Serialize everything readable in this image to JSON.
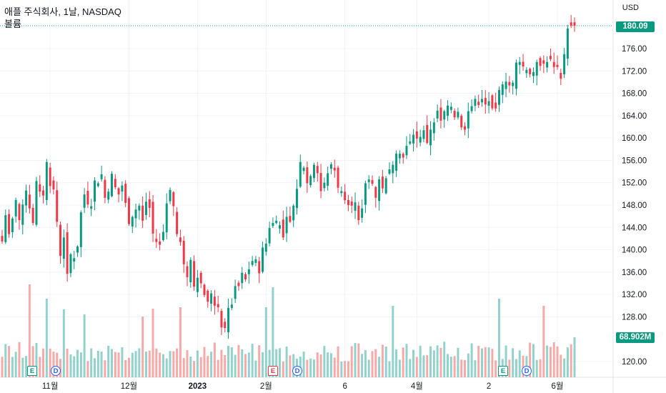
{
  "header": {
    "title": "애플 주식회사, 1날, NASDAQ",
    "subtitle": "볼륨",
    "currency": "USD"
  },
  "badges": {
    "last_price": "180.09",
    "last_volume": "68.902M"
  },
  "colors": {
    "up": "#089981",
    "down": "#f23645",
    "vol_up": "#92d2cc",
    "vol_down": "#f7a9a7",
    "grid": "#f0f3fa",
    "axis_text": "#131722"
  },
  "events": [
    {
      "type": "E",
      "color": "green"
    },
    {
      "type": "D",
      "color": "blue"
    },
    {
      "type": "E",
      "color": "red"
    },
    {
      "type": "D",
      "color": "blue"
    },
    {
      "type": "E",
      "color": "green"
    },
    {
      "type": "D",
      "color": "blue"
    }
  ],
  "chart_data": {
    "type": "candlestick",
    "title": "애플 주식회사, 1날, NASDAQ",
    "currency": "USD",
    "y_ticks": [
      "176.00",
      "172.00",
      "168.00",
      "164.00",
      "160.00",
      "156.00",
      "152.00",
      "148.00",
      "144.00",
      "140.00",
      "136.00",
      "132.00",
      "128.00",
      "120.00"
    ],
    "y_tick_values": [
      176,
      172,
      168,
      164,
      160,
      156,
      152,
      148,
      144,
      140,
      136,
      132,
      128,
      120
    ],
    "ylim": [
      117.5,
      183
    ],
    "x_ticks": [
      {
        "label": "11월",
        "index": 14,
        "bold": false
      },
      {
        "label": "12월",
        "index": 37,
        "bold": false
      },
      {
        "label": "2023",
        "index": 57,
        "bold": true
      },
      {
        "label": "2월",
        "index": 77,
        "bold": false
      },
      {
        "label": "6",
        "index": 100,
        "bold": false
      },
      {
        "label": "4월",
        "index": 121,
        "bold": false
      },
      {
        "label": "2",
        "index": 142,
        "bold": false
      },
      {
        "label": "6월",
        "index": 162,
        "bold": false
      }
    ],
    "closes": [
      141.5,
      146.2,
      142.8,
      145.6,
      148.9,
      145.3,
      148.1,
      150.6,
      147.4,
      144.8,
      152.3,
      150.4,
      149.7,
      155.7,
      151.4,
      150.8,
      145.0,
      138.9,
      142.2,
      135.7,
      139.2,
      138.5,
      140.6,
      146.7,
      149.9,
      148.1,
      147.8,
      152.4,
      151.9,
      153.5,
      149.3,
      150.4,
      153.6,
      151.2,
      149.9,
      151.5,
      148.4,
      144.6,
      145.9,
      147.2,
      147.9,
      145.2,
      148.6,
      147.5,
      142.9,
      141.4,
      140.9,
      143.2,
      148.3,
      150.7,
      147.8,
      142.8,
      141.4,
      137.4,
      135.1,
      138.2,
      133.4,
      135.0,
      134.0,
      131.9,
      130.7,
      132.2,
      130.0,
      129.7,
      126.1,
      126.0,
      129.6,
      130.2,
      133.5,
      133.5,
      135.9,
      134.7,
      136.5,
      138.0,
      138.3,
      135.8,
      140.4,
      141.1,
      143.9,
      144.8,
      145.2,
      144.4,
      142.2,
      145.9,
      145.0,
      147.9,
      150.9,
      155.7,
      154.7,
      151.9,
      153.2,
      155.2,
      153.7,
      150.5,
      152.0,
      153.7,
      155.3,
      154.2,
      151.1,
      150.5,
      148.9,
      148.0,
      147.9,
      148.5,
      145.3,
      147.4,
      151.9,
      152.6,
      151.8,
      149.3,
      152.6,
      151.0,
      152.8,
      154.4,
      155.2,
      157.2,
      157.2,
      156.5,
      158.6,
      159.4,
      160.6,
      159.9,
      160.2,
      161.4,
      159.1,
      161.5,
      162.8,
      164.9,
      163.1,
      164.8,
      165.8,
      165.6,
      163.7,
      164.7,
      161.9,
      161.5,
      164.8,
      165.7,
      167.0,
      165.9,
      167.0,
      166.0,
      166.6,
      165.3,
      165.3,
      168.6,
      169.6,
      170.1,
      169.4,
      169.9,
      173.5,
      173.6,
      172.8,
      172.2,
      171.4,
      171.8,
      173.6,
      172.9,
      173.3,
      173.6,
      174.1,
      172.7,
      172.7,
      170.6,
      175.0,
      179.6,
      180.1,
      180.1
    ],
    "volume_ticks": [],
    "last_price": 180.09,
    "last_volume": "68.902M"
  }
}
